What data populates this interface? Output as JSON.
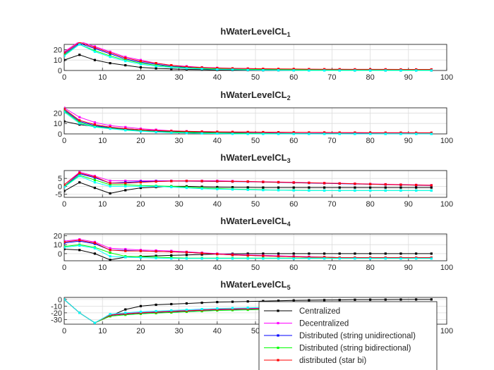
{
  "chart_data": {
    "type": "line",
    "x": [
      0,
      4,
      8,
      12,
      16,
      20,
      24,
      28,
      32,
      36,
      40,
      44,
      48,
      52,
      56,
      60,
      64,
      68,
      72,
      76,
      80,
      84,
      88,
      92,
      96
    ],
    "xlim": [
      0,
      100
    ],
    "xticks": [
      0,
      10,
      20,
      30,
      40,
      50,
      60,
      70,
      80,
      90,
      100
    ],
    "grid": true,
    "legend": {
      "location": "bottom-right",
      "entries": [
        "Centralized",
        "Decentralized",
        "Distributed (string unidirectional)",
        "Distributed (string bidirectional)",
        "distributed (star bi)"
      ]
    },
    "series_styles": [
      {
        "name": "Centralized",
        "color": "#000000"
      },
      {
        "name": "Decentralized",
        "color": "#ff00ff"
      },
      {
        "name": "Distributed (string unidirectional)",
        "color": "#0000ff"
      },
      {
        "name": "Distributed (string bidirectional)",
        "color": "#00ff00"
      },
      {
        "name": "distributed (star bi)",
        "color": "#ff0000"
      },
      {
        "name": "",
        "color": "#00ffff"
      }
    ],
    "panels": [
      {
        "title": "hWaterLevelCL",
        "title_sub": "1",
        "ylim": [
          0,
          25
        ],
        "yticks": [
          0,
          10,
          20
        ],
        "series": [
          [
            10,
            15,
            10,
            7,
            5,
            3,
            2,
            1.5,
            1,
            0.8,
            0.5,
            0.4,
            0.3,
            0.2,
            0.2,
            0.1,
            0.1,
            0.1,
            0.1,
            0,
            0,
            0,
            0,
            0,
            0
          ],
          [
            18,
            28,
            23,
            18,
            13,
            10,
            7,
            5,
            4,
            3,
            2.5,
            2,
            1.8,
            1.5,
            1.3,
            1.2,
            1.1,
            1,
            1,
            1,
            1,
            1,
            1,
            1,
            1
          ],
          [
            16,
            26,
            21,
            16,
            11,
            8,
            6,
            4,
            3,
            2,
            1.5,
            1.3,
            1,
            1,
            1,
            0.8,
            0.7,
            0.7,
            0.6,
            0.6,
            0.6,
            0.5,
            0.5,
            0.5,
            0.5
          ],
          [
            15,
            25,
            19,
            14,
            10,
            7,
            5,
            3.5,
            2.5,
            2,
            1.5,
            1.2,
            1,
            0.9,
            0.8,
            0.7,
            0.6,
            0.6,
            0.5,
            0.5,
            0.5,
            0.5,
            0.5,
            0.5,
            0.5
          ],
          [
            17,
            27,
            22,
            17,
            12,
            9,
            7,
            5,
            3.5,
            2.8,
            2.3,
            2,
            1.8,
            1.6,
            1.5,
            1.4,
            1.3,
            1.2,
            1.2,
            1.1,
            1.1,
            1.1,
            1,
            1,
            1
          ],
          [
            14,
            25,
            18,
            13,
            9,
            6,
            4,
            3,
            2,
            1.5,
            1,
            0.8,
            0.5,
            0.3,
            0.2,
            0.1,
            0,
            0,
            0,
            0,
            0,
            0,
            0,
            0,
            0
          ]
        ]
      },
      {
        "title": "hWaterLevelCL",
        "title_sub": "2",
        "ylim": [
          0,
          25
        ],
        "yticks": [
          0,
          10,
          20
        ],
        "series": [
          [
            12,
            9,
            7,
            6,
            5,
            4,
            3,
            2.5,
            2,
            1.5,
            1.2,
            1,
            0.8,
            0.6,
            0.5,
            0.4,
            0.3,
            0.3,
            0.2,
            0.2,
            0.2,
            0.1,
            0.1,
            0.1,
            0.1
          ],
          [
            25,
            16,
            11,
            8,
            6.5,
            5,
            4,
            3,
            2.5,
            2.2,
            2,
            1.8,
            1.6,
            1.5,
            1.4,
            1.3,
            1.2,
            1.1,
            1.1,
            1,
            1,
            1,
            1,
            1,
            1
          ],
          [
            23,
            12,
            8,
            6,
            4.5,
            3,
            2.5,
            2,
            1.5,
            1.2,
            1,
            0.8,
            0.6,
            0.5,
            0.4,
            0.3,
            0.3,
            0.2,
            0.2,
            0.2,
            0.1,
            0.1,
            0.1,
            0.1,
            0.1
          ],
          [
            22,
            11,
            7,
            5.5,
            4,
            3,
            2.2,
            1.8,
            1.4,
            1.1,
            0.9,
            0.7,
            0.5,
            0.4,
            0.3,
            0.3,
            0.2,
            0.2,
            0.2,
            0.1,
            0.1,
            0.1,
            0.1,
            0.1,
            0.1
          ],
          [
            24,
            13,
            9,
            6.5,
            5,
            4,
            3.2,
            2.8,
            2.4,
            2.2,
            2,
            1.9,
            1.8,
            1.7,
            1.6,
            1.5,
            1.4,
            1.4,
            1.3,
            1.3,
            1.2,
            1.2,
            1.2,
            1.1,
            1.1
          ],
          [
            21,
            10,
            6.5,
            5,
            3.5,
            2.5,
            1.8,
            1.2,
            0.8,
            0.5,
            0.3,
            0.1,
            0,
            0,
            0,
            0,
            0,
            0,
            0,
            0,
            0,
            0,
            0,
            0,
            0
          ]
        ]
      },
      {
        "title": "hWaterLevelCL",
        "title_sub": "3",
        "ylim": [
          -7,
          10
        ],
        "yticks": [
          -5,
          0,
          5
        ],
        "series": [
          [
            -3,
            2.5,
            -1,
            -4.5,
            -2.5,
            -1,
            -0.5,
            0,
            0,
            -0.3,
            -0.5,
            -0.6,
            -0.7,
            -0.8,
            -0.8,
            -0.8,
            -0.8,
            -0.8,
            -0.8,
            -0.8,
            -0.8,
            -0.8,
            -0.8,
            -0.8,
            -0.8
          ],
          [
            1,
            9,
            6.5,
            3.5,
            3.5,
            3.5,
            3.5,
            3.5,
            3.5,
            3.5,
            3.5,
            3.3,
            3.1,
            2.9,
            2.7,
            2.5,
            2.3,
            2.1,
            1.9,
            1.7,
            1.5,
            1.3,
            1.1,
            0.9,
            0.7
          ],
          [
            0,
            8,
            5.5,
            2,
            2.5,
            3,
            3.2,
            3.3,
            3.3,
            3.2,
            3.1,
            3,
            2.9,
            2.7,
            2.5,
            2.3,
            2.1,
            1.9,
            1.7,
            1.5,
            1.3,
            1.1,
            0.9,
            0.7,
            0.5
          ],
          [
            0,
            7,
            4,
            1,
            1,
            0.5,
            0.3,
            0,
            -0.5,
            -1,
            -1.4,
            -1.7,
            -2,
            -2.2,
            -2.4,
            -2.5,
            -2.6,
            -2.7,
            -2.7,
            -2.7,
            -2.7,
            -2.7,
            -2.7,
            -2.7,
            -2.7
          ],
          [
            1,
            8.5,
            6,
            2,
            2,
            2.5,
            3,
            3.3,
            3.4,
            3.3,
            3.2,
            3.1,
            3,
            2.8,
            2.6,
            2.4,
            2.2,
            2,
            1.8,
            1.6,
            1.4,
            1.2,
            1,
            0.8,
            0.6
          ],
          [
            -0.5,
            6.5,
            2.5,
            0,
            0,
            0,
            0,
            -0.5,
            -1,
            -1.5,
            -1.8,
            -2,
            -2.2,
            -2.4,
            -2.5,
            -2.6,
            -2.7,
            -2.7,
            -2.7,
            -2.7,
            -2.7,
            -2.7,
            -2.7,
            -2.7,
            -2.7
          ]
        ]
      },
      {
        "title": "hWaterLevelCL",
        "title_sub": "4",
        "ylim": [
          -8,
          22
        ],
        "yticks": [
          0,
          10,
          20
        ],
        "series": [
          [
            5,
            4,
            0,
            -7,
            -4,
            -3,
            -2.5,
            -2,
            -1.5,
            -1,
            -0.5,
            -0.2,
            0,
            0,
            0,
            0,
            0,
            0,
            0,
            0,
            0,
            0,
            0,
            0,
            0
          ],
          [
            14,
            16,
            13,
            6,
            5,
            4,
            3.5,
            3,
            2,
            1,
            0,
            -1,
            -1.5,
            -2,
            -2.5,
            -3,
            -3.5,
            -4,
            -4.5,
            -5,
            -5,
            -5,
            -5,
            -5,
            -5
          ],
          [
            12,
            14,
            11,
            4,
            3.5,
            3,
            2.5,
            2,
            1.5,
            0.5,
            -0.5,
            -1.5,
            -2,
            -2.5,
            -3,
            -3.5,
            -4,
            -4,
            -4.5,
            -4.5,
            -4.5,
            -4.5,
            -4.5,
            -4.5,
            -4.5
          ],
          [
            8,
            10,
            7,
            1,
            -3,
            -3.5,
            -4,
            -4.5,
            -5,
            -5,
            -5,
            -5,
            -5,
            -5,
            -5,
            -5,
            -5,
            -5,
            -5,
            -5,
            -5,
            -5,
            -5,
            -5,
            -5
          ],
          [
            13,
            15,
            12,
            4,
            3,
            3,
            2.5,
            2,
            1.5,
            0.5,
            -0.5,
            -1.5,
            -2,
            -2.5,
            -3,
            -3.5,
            -4,
            -4,
            -4.5,
            -4.5,
            -4.5,
            -4.5,
            -4.5,
            -4.5,
            -4.5
          ],
          [
            7,
            9,
            6,
            -3,
            -4,
            -4.5,
            -5,
            -5.5,
            -5.5,
            -5.5,
            -5.5,
            -5.5,
            -5.5,
            -5.5,
            -5.5,
            -5.5,
            -5.5,
            -5.5,
            -5.5,
            -5.5,
            -5.5,
            -5.5,
            -5.5,
            -5.5,
            -5.5
          ]
        ]
      },
      {
        "title": "hWaterLevelCL",
        "title_sub": "5",
        "ylim": [
          -37,
          3
        ],
        "yticks": [
          -30,
          -20,
          -10,
          0
        ],
        "series": [
          [
            0,
            -20,
            -35,
            -25,
            -15,
            -10,
            -8,
            -7,
            -6,
            -5,
            -4,
            -3.5,
            -3,
            -2.5,
            -2,
            -1.5,
            -1.2,
            -1,
            -0.8,
            -0.5,
            -0.4,
            -0.3,
            -0.2,
            -0.1,
            0
          ],
          [
            0,
            -20,
            -35,
            -23,
            -21,
            -19.5,
            -18.5,
            -17.5,
            -16.5,
            -15.5,
            -14.5,
            -14,
            -13.5,
            -13,
            -12.5,
            -12,
            -11.5,
            -11,
            -10.5,
            -10,
            -9.5,
            -9,
            -8.5,
            -8,
            -7.5
          ],
          [
            0,
            -20,
            -35,
            -24,
            -22,
            -20.5,
            -19.5,
            -18.5,
            -17.5,
            -16.5,
            -15.5,
            -15,
            -14.5,
            -14,
            -13.5,
            -13,
            -12.5,
            -12,
            -11.5,
            -11,
            -10.5,
            -10,
            -9.5,
            -9,
            -8.5
          ],
          [
            0,
            -20,
            -35,
            -25,
            -23,
            -21.5,
            -20.5,
            -19.5,
            -18.5,
            -17.5,
            -16.5,
            -16,
            -15.5,
            -15,
            -14.5,
            -14,
            -13.5,
            -13,
            -12.5,
            -12,
            -11.5,
            -11,
            -10.5,
            -10,
            -9.5
          ],
          [
            0,
            -20,
            -35,
            -23.5,
            -21.5,
            -20,
            -19,
            -18,
            -17,
            -16,
            -15,
            -14.5,
            -14,
            -13.5,
            -13,
            -12.5,
            -12,
            -11.5,
            -11,
            -10.5,
            -10,
            -9.5,
            -9,
            -8.5,
            -8
          ],
          [
            0,
            -20,
            -35,
            -22,
            -20,
            -18.5,
            -17.5,
            -16.5,
            -15.5,
            -14.5,
            -13.5,
            -13,
            -12.5,
            -12,
            -11.5,
            -11,
            -10.5,
            -10,
            -9.5,
            -9,
            -8.5,
            -8,
            -7.5,
            -7,
            -6.5
          ]
        ]
      }
    ]
  }
}
